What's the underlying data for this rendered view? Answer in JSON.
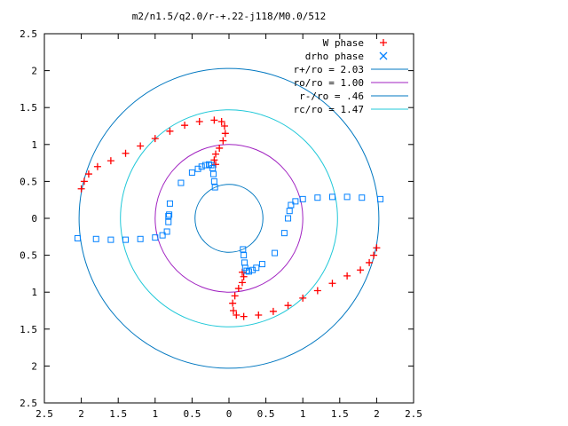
{
  "chart_data": {
    "type": "scatter",
    "title": "m2/n1.5/q2.0/r-+.22-j118/M0.0/512",
    "xlabel": "",
    "ylabel": "",
    "xlim": [
      -2.5,
      2.5
    ],
    "ylim": [
      -2.5,
      2.5
    ],
    "x_ticks": [
      -2.5,
      -2,
      -1.5,
      -1,
      -0.5,
      0,
      0.5,
      1,
      1.5,
      2,
      2.5
    ],
    "y_ticks": [
      -2.5,
      -2,
      -1.5,
      -1,
      -0.5,
      0,
      0.5,
      1,
      1.5,
      2,
      2.5
    ],
    "x_tick_labels": [
      "2.5",
      "2",
      "1.5",
      "1",
      "0.5",
      "0",
      "0.5",
      "1",
      "1.5",
      "2",
      "2.5"
    ],
    "y_tick_labels": [
      "2.5",
      "2",
      "1.5",
      "1",
      "0.5",
      "0",
      "0.5",
      "1",
      "1.5",
      "2",
      "2.5"
    ],
    "grid": false,
    "legend_position": "top-right",
    "series": [
      {
        "name": "W phase",
        "kind": "points",
        "marker": "plus",
        "color": "#ff0000",
        "points": [
          [
            -2.0,
            0.4
          ],
          [
            -1.96,
            0.5
          ],
          [
            -1.9,
            0.6
          ],
          [
            -1.78,
            0.7
          ],
          [
            -1.6,
            0.78
          ],
          [
            -1.4,
            0.88
          ],
          [
            -1.2,
            0.98
          ],
          [
            -1.0,
            1.08
          ],
          [
            -0.8,
            1.18
          ],
          [
            -0.6,
            1.26
          ],
          [
            -0.4,
            1.31
          ],
          [
            -0.2,
            1.33
          ],
          [
            -0.1,
            1.31
          ],
          [
            -0.06,
            1.25
          ],
          [
            -0.05,
            1.15
          ],
          [
            -0.08,
            1.05
          ],
          [
            -0.13,
            0.95
          ],
          [
            -0.18,
            0.87
          ],
          [
            -0.2,
            0.79
          ],
          [
            -0.18,
            0.73
          ],
          [
            2.0,
            -0.4
          ],
          [
            1.96,
            -0.5
          ],
          [
            1.9,
            -0.6
          ],
          [
            1.78,
            -0.7
          ],
          [
            1.6,
            -0.78
          ],
          [
            1.4,
            -0.88
          ],
          [
            1.2,
            -0.98
          ],
          [
            1.0,
            -1.08
          ],
          [
            0.8,
            -1.18
          ],
          [
            0.6,
            -1.26
          ],
          [
            0.4,
            -1.31
          ],
          [
            0.2,
            -1.33
          ],
          [
            0.1,
            -1.31
          ],
          [
            0.06,
            -1.25
          ],
          [
            0.05,
            -1.15
          ],
          [
            0.08,
            -1.05
          ],
          [
            0.13,
            -0.95
          ],
          [
            0.18,
            -0.87
          ],
          [
            0.2,
            -0.79
          ],
          [
            0.18,
            -0.73
          ]
        ]
      },
      {
        "name": "drho phase",
        "kind": "points",
        "marker": "square",
        "color": "#0080ff",
        "points": [
          [
            -2.05,
            -0.27
          ],
          [
            -1.8,
            -0.28
          ],
          [
            -1.6,
            -0.29
          ],
          [
            -1.4,
            -0.29
          ],
          [
            -1.2,
            -0.28
          ],
          [
            -1.0,
            -0.26
          ],
          [
            -0.9,
            -0.23
          ],
          [
            -0.84,
            -0.18
          ],
          [
            -0.82,
            -0.05
          ],
          [
            -0.82,
            0.03
          ],
          [
            -0.81,
            0.05
          ],
          [
            -0.8,
            0.2
          ],
          [
            -0.65,
            0.48
          ],
          [
            -0.5,
            0.62
          ],
          [
            -0.42,
            0.67
          ],
          [
            -0.37,
            0.7
          ],
          [
            -0.32,
            0.72
          ],
          [
            -0.27,
            0.73
          ],
          [
            -0.24,
            0.72
          ],
          [
            -0.22,
            0.68
          ],
          [
            -0.21,
            0.6
          ],
          [
            -0.2,
            0.5
          ],
          [
            -0.19,
            0.42
          ],
          [
            2.05,
            0.26
          ],
          [
            1.8,
            0.28
          ],
          [
            1.6,
            0.29
          ],
          [
            1.4,
            0.29
          ],
          [
            1.2,
            0.28
          ],
          [
            1.0,
            0.26
          ],
          [
            0.9,
            0.23
          ],
          [
            0.84,
            0.18
          ],
          [
            0.82,
            0.1
          ],
          [
            0.8,
            0.0
          ],
          [
            0.75,
            -0.2
          ],
          [
            0.62,
            -0.47
          ],
          [
            0.45,
            -0.62
          ],
          [
            0.37,
            -0.67
          ],
          [
            0.32,
            -0.7
          ],
          [
            0.27,
            -0.72
          ],
          [
            0.24,
            -0.71
          ],
          [
            0.22,
            -0.67
          ],
          [
            0.21,
            -0.6
          ],
          [
            0.2,
            -0.5
          ],
          [
            0.19,
            -0.42
          ]
        ]
      },
      {
        "name": "r+/ro = 2.03",
        "kind": "circle",
        "radius": 2.03,
        "color": "#0077c0"
      },
      {
        "name": "ro/ro = 1.00",
        "kind": "circle",
        "radius": 1.0,
        "color": "#a020c0"
      },
      {
        "name": "r-/ro = .46",
        "kind": "circle",
        "radius": 0.46,
        "color": "#0077c0"
      },
      {
        "name": "rc/ro = 1.47",
        "kind": "circle",
        "radius": 1.47,
        "color": "#20c8d8"
      }
    ]
  }
}
